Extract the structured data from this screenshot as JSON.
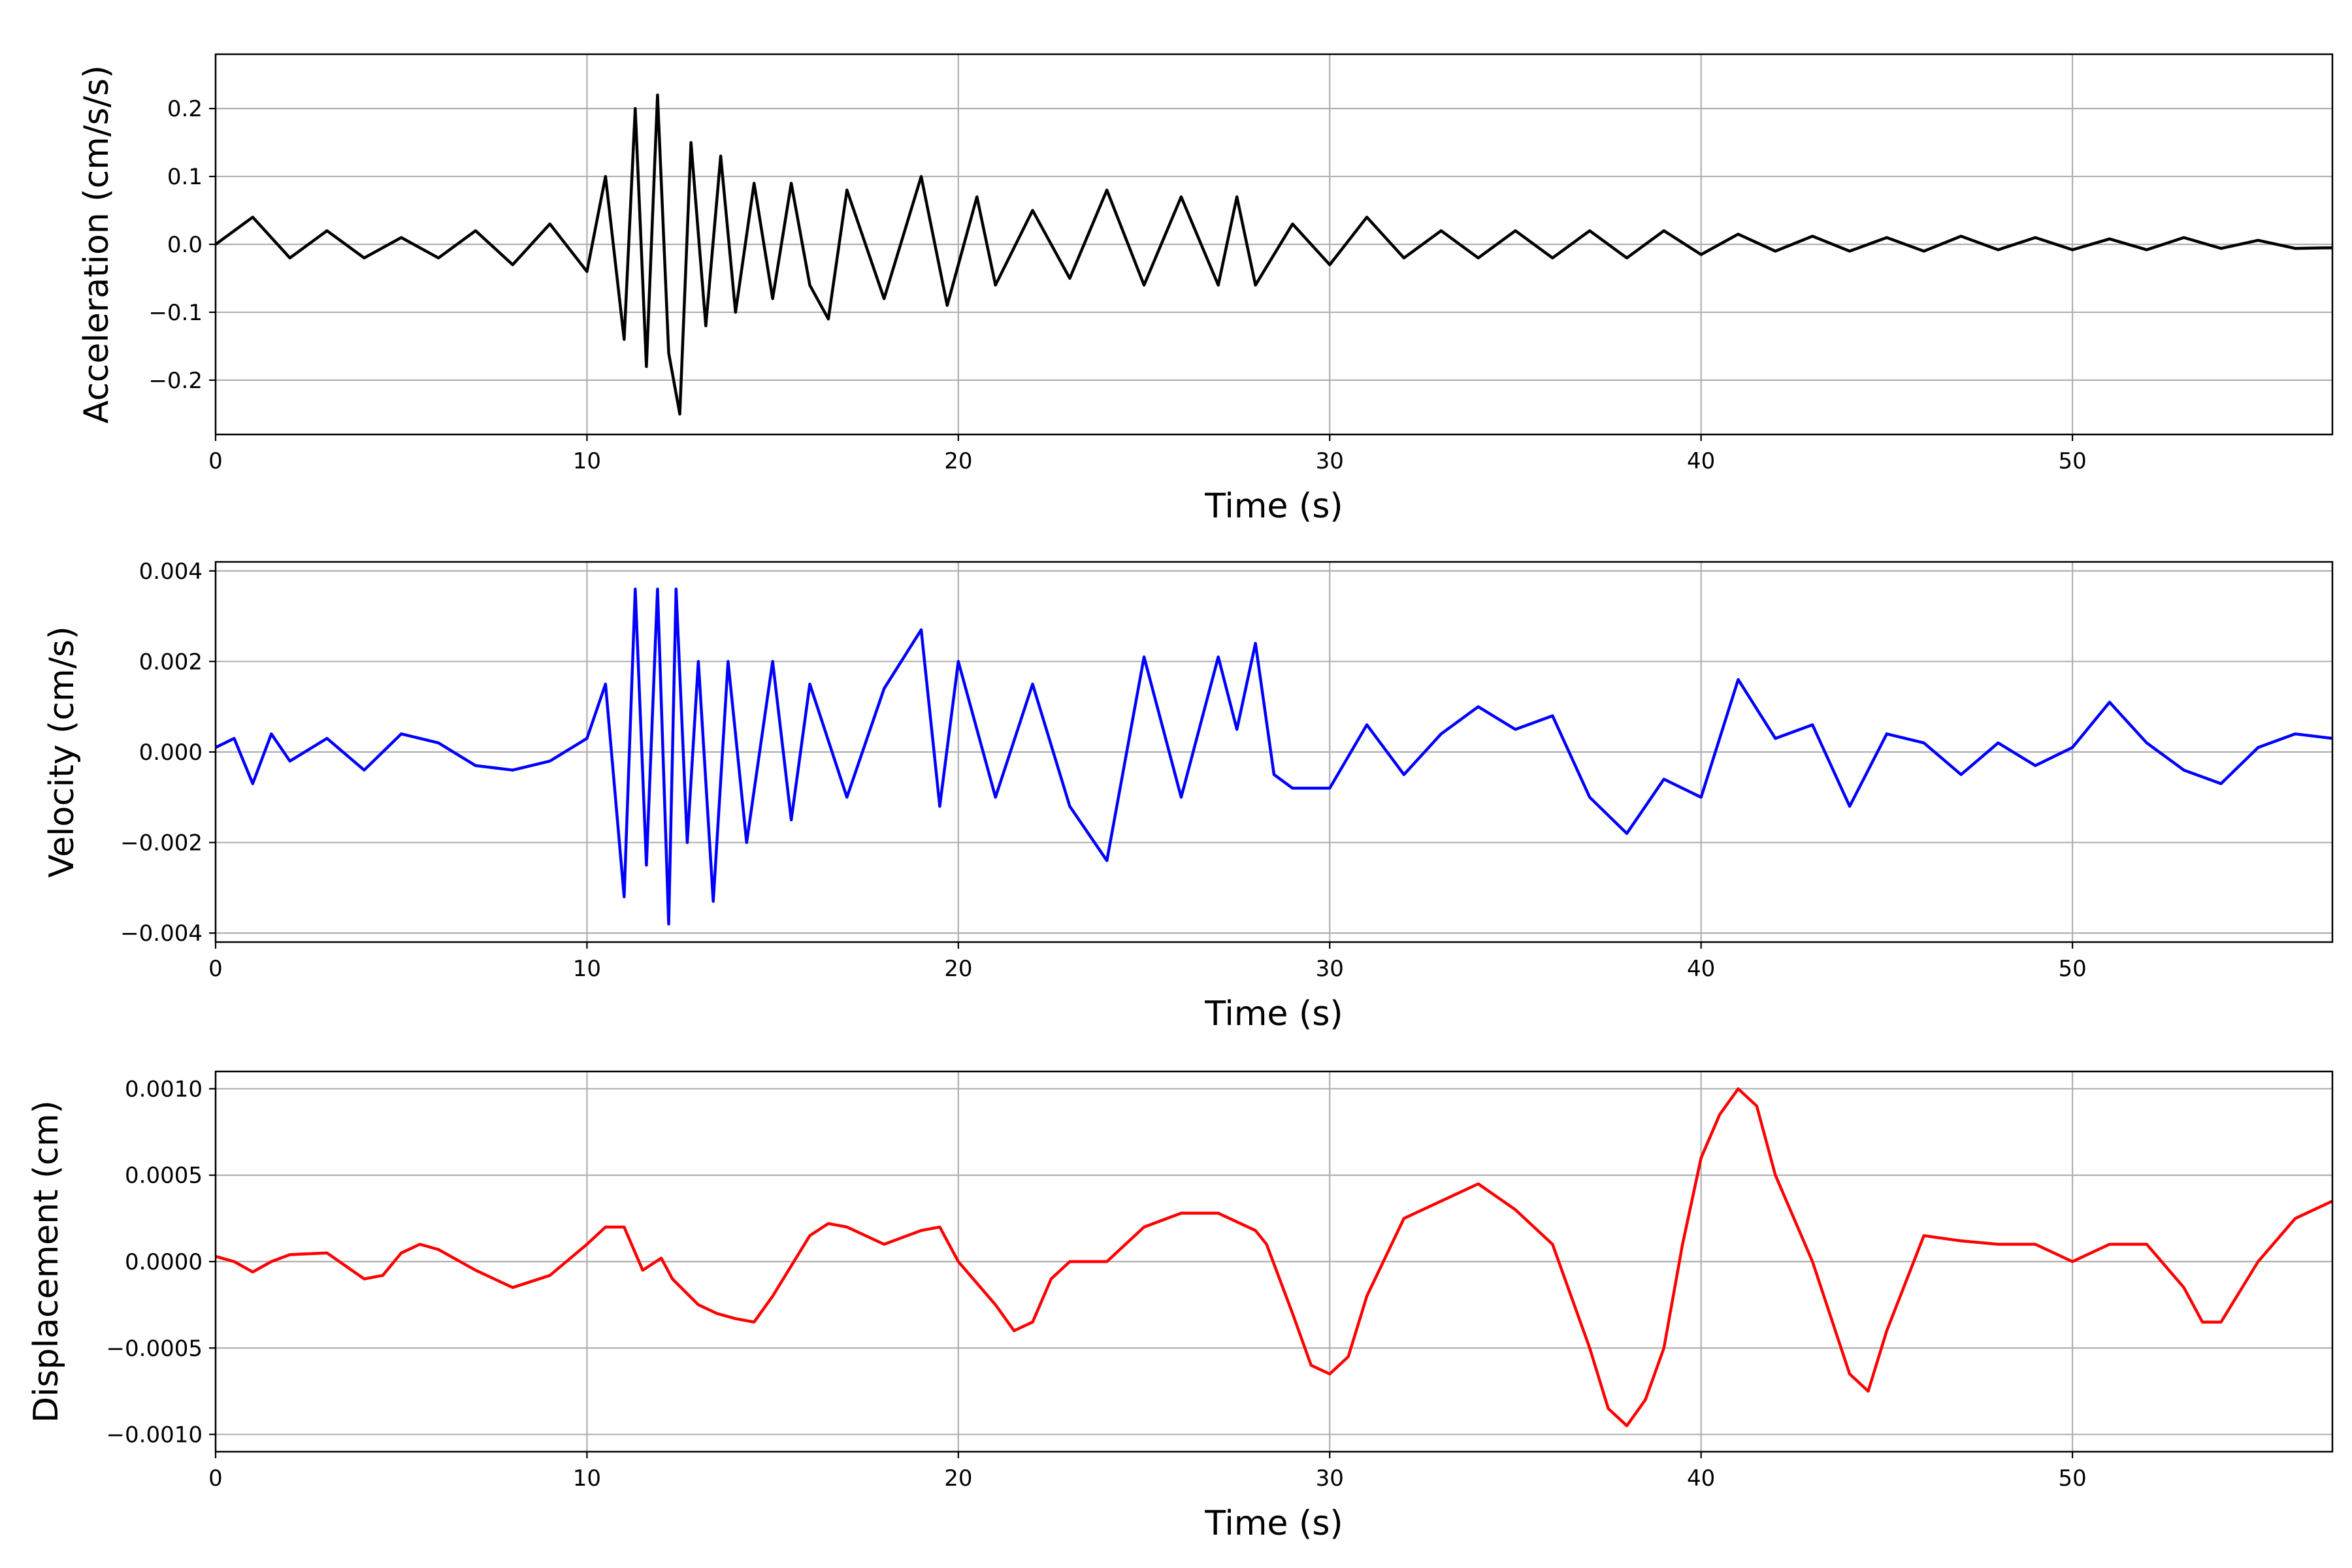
{
  "chart_data": [
    {
      "type": "line",
      "title": "",
      "xlabel": "Time (s)",
      "ylabel": "Acceleration (cm/s/s)",
      "xlim": [
        0,
        57
      ],
      "ylim": [
        -0.28,
        0.28
      ],
      "xticks": [
        0,
        10,
        20,
        30,
        40,
        50
      ],
      "xtick_labels": [
        "0",
        "10",
        "20",
        "30",
        "40",
        "50"
      ],
      "yticks": [
        -0.2,
        -0.1,
        0.0,
        0.1,
        0.2
      ],
      "ytick_labels": [
        "−0.2",
        "−0.1",
        "0.0",
        "0.1",
        "0.2"
      ],
      "grid": true,
      "color": "#000000",
      "series": [
        {
          "x": [
            0,
            1,
            2,
            3,
            4,
            5,
            6,
            7,
            8,
            9,
            10,
            10.5,
            11,
            11.3,
            11.6,
            11.9,
            12.2,
            12.5,
            12.8,
            13.2,
            13.6,
            14,
            14.5,
            15,
            15.5,
            16,
            16.5,
            17,
            18,
            19,
            19.7,
            20.5,
            21,
            22,
            23,
            24,
            25,
            26,
            27,
            27.5,
            28,
            29,
            30,
            31,
            32,
            33,
            34,
            35,
            36,
            37,
            38,
            39,
            40,
            41,
            42,
            43,
            44,
            45,
            46,
            47,
            48,
            49,
            50,
            51,
            52,
            53,
            54,
            55,
            56,
            57
          ],
          "y": [
            0.0,
            0.04,
            -0.02,
            0.02,
            -0.02,
            0.01,
            -0.02,
            0.02,
            -0.03,
            0.03,
            -0.04,
            0.1,
            -0.14,
            0.2,
            -0.18,
            0.22,
            -0.16,
            -0.25,
            0.15,
            -0.12,
            0.13,
            -0.1,
            0.09,
            -0.08,
            0.09,
            -0.06,
            -0.11,
            0.08,
            -0.08,
            0.1,
            -0.09,
            0.07,
            -0.06,
            0.05,
            -0.05,
            0.08,
            -0.06,
            0.07,
            -0.06,
            0.07,
            -0.06,
            0.03,
            -0.03,
            0.04,
            -0.02,
            0.02,
            -0.02,
            0.02,
            -0.02,
            0.02,
            -0.02,
            0.02,
            -0.015,
            0.015,
            -0.01,
            0.012,
            -0.01,
            0.01,
            -0.01,
            0.012,
            -0.008,
            0.01,
            -0.008,
            0.008,
            -0.008,
            0.01,
            -0.006,
            0.006,
            -0.006,
            -0.005
          ]
        }
      ]
    },
    {
      "type": "line",
      "title": "",
      "xlabel": "Time (s)",
      "ylabel": "Velocity (cm/s)",
      "xlim": [
        0,
        57
      ],
      "ylim": [
        -0.0042,
        0.0042
      ],
      "xticks": [
        0,
        10,
        20,
        30,
        40,
        50
      ],
      "xtick_labels": [
        "0",
        "10",
        "20",
        "30",
        "40",
        "50"
      ],
      "yticks": [
        -0.004,
        -0.002,
        0.0,
        0.002,
        0.004
      ],
      "ytick_labels": [
        "−0.004",
        "−0.002",
        "0.000",
        "0.002",
        "0.004"
      ],
      "grid": true,
      "color": "#0000ff",
      "series": [
        {
          "x": [
            0,
            0.5,
            1,
            1.5,
            2,
            3,
            4,
            5,
            6,
            7,
            8,
            9,
            10,
            10.5,
            11,
            11.3,
            11.6,
            11.9,
            12.2,
            12.4,
            12.7,
            13,
            13.4,
            13.8,
            14.3,
            15,
            15.5,
            16,
            17,
            18,
            19,
            19.5,
            20,
            21,
            22,
            23,
            24,
            25,
            26,
            27,
            27.5,
            28,
            28.5,
            29,
            30,
            31,
            32,
            33,
            34,
            35,
            36,
            37,
            38,
            39,
            40,
            41,
            42,
            43,
            44,
            45,
            46,
            47,
            48,
            49,
            50,
            51,
            52,
            53,
            54,
            55,
            56,
            57
          ],
          "y": [
            0.0001,
            0.0003,
            -0.0007,
            0.0004,
            -0.0002,
            0.0003,
            -0.0004,
            0.0004,
            0.0002,
            -0.0003,
            -0.0004,
            -0.0002,
            0.0003,
            0.0015,
            -0.0032,
            0.0036,
            -0.0025,
            0.0036,
            -0.0038,
            0.0036,
            -0.002,
            0.002,
            -0.0033,
            0.002,
            -0.002,
            0.002,
            -0.0015,
            0.0015,
            -0.001,
            0.0014,
            0.0027,
            -0.0012,
            0.002,
            -0.001,
            0.0015,
            -0.0012,
            -0.0024,
            0.0021,
            -0.001,
            0.0021,
            0.0005,
            0.0024,
            -0.0005,
            -0.0008,
            -0.0008,
            0.0006,
            -0.0005,
            0.0004,
            0.001,
            0.0005,
            0.0008,
            -0.001,
            -0.0018,
            -0.0006,
            -0.001,
            0.0016,
            0.0003,
            0.0006,
            -0.0012,
            0.0004,
            0.0002,
            -0.0005,
            0.0002,
            -0.0003,
            0.0001,
            0.0011,
            0.0002,
            -0.0004,
            -0.0007,
            0.0001,
            0.0004,
            0.0003
          ]
        }
      ]
    },
    {
      "type": "line",
      "title": "",
      "xlabel": "Time (s)",
      "ylabel": "Displacement (cm)",
      "xlim": [
        0,
        57
      ],
      "ylim": [
        -0.0011,
        0.0011
      ],
      "xticks": [
        0,
        10,
        20,
        30,
        40,
        50
      ],
      "xtick_labels": [
        "0",
        "10",
        "20",
        "30",
        "40",
        "50"
      ],
      "yticks": [
        -0.001,
        -0.0005,
        0.0,
        0.0005,
        0.001
      ],
      "ytick_labels": [
        "−0.0010",
        "−0.0005",
        "0.0000",
        "0.0005",
        "0.0010"
      ],
      "grid": true,
      "color": "#ff0000",
      "series": [
        {
          "x": [
            0,
            0.5,
            1,
            1.5,
            2,
            3,
            4,
            4.5,
            5,
            5.5,
            6,
            7,
            8,
            9,
            10,
            10.5,
            11,
            11.5,
            12,
            12.3,
            13,
            13.5,
            14,
            14.5,
            15,
            16,
            16.5,
            17,
            18,
            19,
            19.5,
            20,
            21,
            21.5,
            22,
            22.5,
            23,
            24,
            25,
            26,
            27,
            28,
            28.3,
            29,
            29.5,
            30,
            30.5,
            31,
            32,
            33,
            34,
            35,
            36,
            37,
            37.5,
            38,
            38.5,
            39,
            39.5,
            40,
            40.5,
            41,
            41.5,
            42,
            43,
            44,
            44.5,
            45,
            46,
            47,
            48,
            49,
            50,
            51,
            52,
            53,
            53.5,
            54,
            55,
            56,
            57
          ],
          "y": [
            3e-05,
            0.0,
            -6e-05,
            0.0,
            4e-05,
            5e-05,
            -0.0001,
            -8e-05,
            5e-05,
            0.0001,
            7e-05,
            -5e-05,
            -0.00015,
            -8e-05,
            0.0001,
            0.0002,
            0.0002,
            -5e-05,
            2e-05,
            -0.0001,
            -0.00025,
            -0.0003,
            -0.00033,
            -0.00035,
            -0.0002,
            0.00015,
            0.00022,
            0.0002,
            0.0001,
            0.00018,
            0.0002,
            0.0,
            -0.00025,
            -0.0004,
            -0.00035,
            -0.0001,
            0.0,
            0.0,
            0.0002,
            0.00028,
            0.00028,
            0.00018,
            0.0001,
            -0.0003,
            -0.0006,
            -0.00065,
            -0.00055,
            -0.0002,
            0.00025,
            0.00035,
            0.00045,
            0.0003,
            0.0001,
            -0.0005,
            -0.00085,
            -0.00095,
            -0.0008,
            -0.0005,
            0.0001,
            0.0006,
            0.00085,
            0.001,
            0.0009,
            0.0005,
            0.0,
            -0.00065,
            -0.00075,
            -0.0004,
            0.00015,
            0.00012,
            0.0001,
            0.0001,
            0.0,
            0.0001,
            0.0001,
            -0.00015,
            -0.00035,
            -0.00035,
            0.0,
            0.00025,
            0.00035
          ]
        }
      ]
    }
  ]
}
